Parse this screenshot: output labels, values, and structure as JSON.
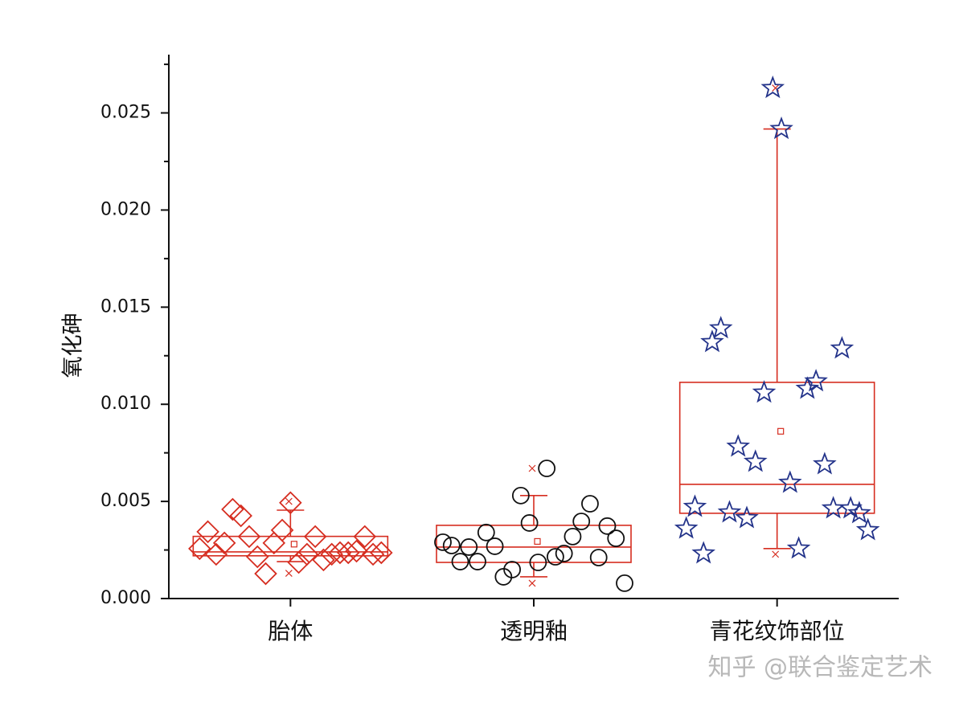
{
  "chart_data": {
    "type": "box",
    "y_label": "氧化砷",
    "categories": [
      "胎体",
      "透明釉",
      "青花纹饰部位"
    ],
    "ylim": [
      0,
      0.028
    ],
    "yticks": [
      {
        "value": 0,
        "label": "0.000"
      },
      {
        "value": 0.005,
        "label": "0.005"
      },
      {
        "value": 0.01,
        "label": "0.010"
      },
      {
        "value": 0.015,
        "label": "0.015"
      },
      {
        "value": 0.02,
        "label": "0.020"
      },
      {
        "value": 0.025,
        "label": "0.025"
      }
    ],
    "yminor_ticks": [
      0.0025,
      0.0075,
      0.0125,
      0.0175,
      0.0225,
      0.0275
    ],
    "box_color": "#d62d20",
    "groups": [
      {
        "marker": "diamond",
        "color": "#d62d20",
        "q1": 0.0022,
        "median": 0.0024,
        "q3": 0.0032,
        "whisker_low": 0.0019,
        "whisker_high": 0.00455,
        "mean": 0.0028,
        "min": 0.0013,
        "max": 0.005,
        "values": [
          0.00257,
          0.00344,
          0.00228,
          0.00286,
          0.00459,
          0.00426,
          0.00319,
          0.00215,
          0.00128,
          0.00286,
          0.00352,
          0.00493,
          0.00186,
          0.00228,
          0.00319,
          0.00199,
          0.00228,
          0.00236,
          0.00236,
          0.00244,
          0.00319,
          0.00228,
          0.00236
        ]
      },
      {
        "marker": "circle",
        "color": "#111111",
        "q1": 0.00186,
        "median": 0.00265,
        "q3": 0.00377,
        "whisker_low": 0.00112,
        "whisker_high": 0.0053,
        "mean": 0.00294,
        "min": 0.00079,
        "max": 0.0067,
        "values": [
          0.0029,
          0.00273,
          0.0019,
          0.00265,
          0.0019,
          0.0034,
          0.00269,
          0.00112,
          0.00149,
          0.0053,
          0.00389,
          0.00186,
          0.0067,
          0.00215,
          0.00232,
          0.00319,
          0.00397,
          0.00488,
          0.00211,
          0.00373,
          0.0031,
          0.00079
        ]
      },
      {
        "marker": "star",
        "color": "#23338a",
        "q1": 0.00439,
        "median": 0.00588,
        "q3": 0.01113,
        "whisker_low": 0.00257,
        "whisker_high": 0.02417,
        "mean": 0.00861,
        "min": 0.00228,
        "max": 0.02628,
        "values": [
          0.0036,
          0.00472,
          0.00232,
          0.0132,
          0.01391,
          0.00443,
          0.00782,
          0.00414,
          0.00704,
          0.0106,
          0.02628,
          0.02417,
          0.00596,
          0.00257,
          0.0108,
          0.01118,
          0.00691,
          0.00464,
          0.01287,
          0.00464,
          0.00439,
          0.00352
        ]
      }
    ],
    "watermark": "知乎 @联合鉴定艺术"
  }
}
